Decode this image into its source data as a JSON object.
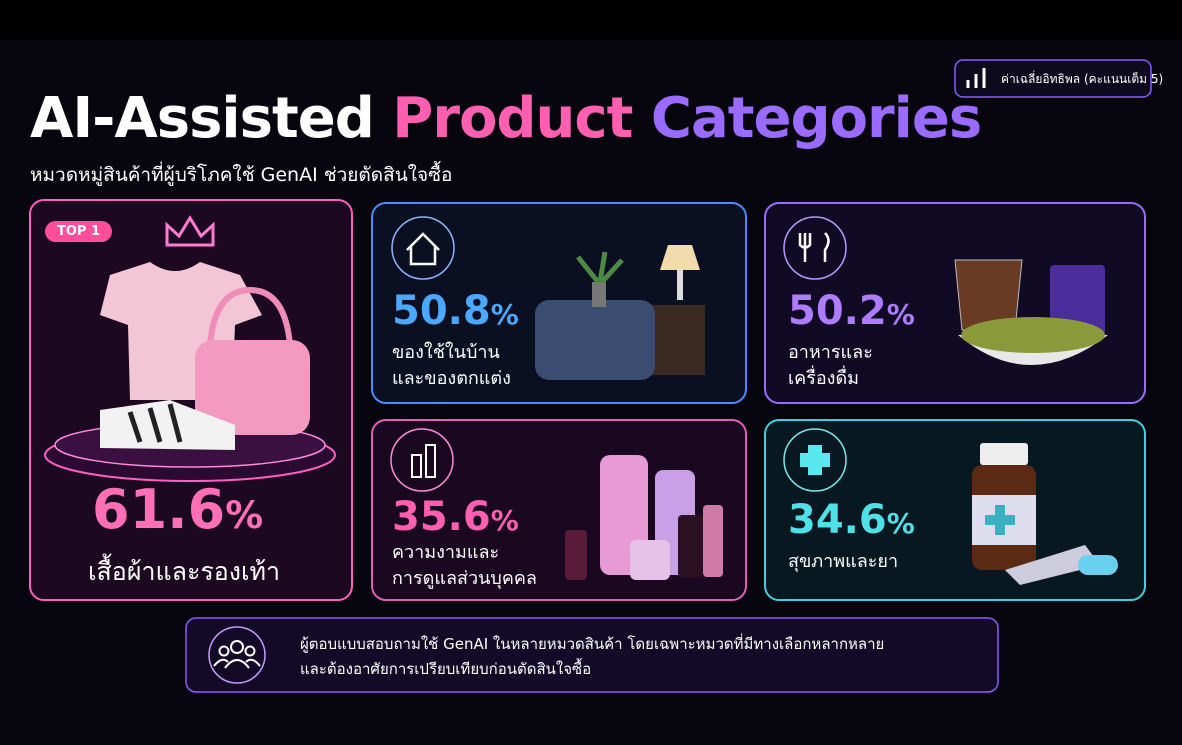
{
  "badge": {
    "label": "ค่าเฉลี่ยอิทธิพล (คะแนนเต็ม 5)"
  },
  "header": {
    "title_part1": "AI-Assisted",
    "title_part2": "Product",
    "title_part3": "Categories",
    "subtitle": "หมวดหมู่สินค้าที่ผู้บริโภคใช้ GenAI ช่วยตัดสินใจซื้อ"
  },
  "cards": [
    {
      "tag": "TOP 1",
      "value": 61.6,
      "unit": "%",
      "label_lines": [
        "เสื้อผ้าและรองเท้า"
      ]
    },
    {
      "value": 50.8,
      "unit": "%",
      "label_lines": [
        "ของใช้ในบ้าน",
        "และของตกแต่ง"
      ]
    },
    {
      "value": 50.2,
      "unit": "%",
      "label_lines": [
        "อาหารและ",
        "เครื่องดื่ม"
      ]
    },
    {
      "value": 35.6,
      "unit": "%",
      "label_lines": [
        "ความงามและ",
        "การดูแลส่วนบุคคล"
      ]
    },
    {
      "value": 34.6,
      "unit": "%",
      "label_lines": [
        "สุขภาพและยา"
      ]
    }
  ],
  "footer": {
    "lines": [
      "ผู้ตอบแบบสอบถามใช้ GenAI ในหลายหมวดสินค้า โดยเฉพาะหมวดที่มีทางเลือกหลากหลาย",
      "และต้องอาศัยการเปรียบเทียบก่อนตัดสินใจซื้อ"
    ]
  }
}
